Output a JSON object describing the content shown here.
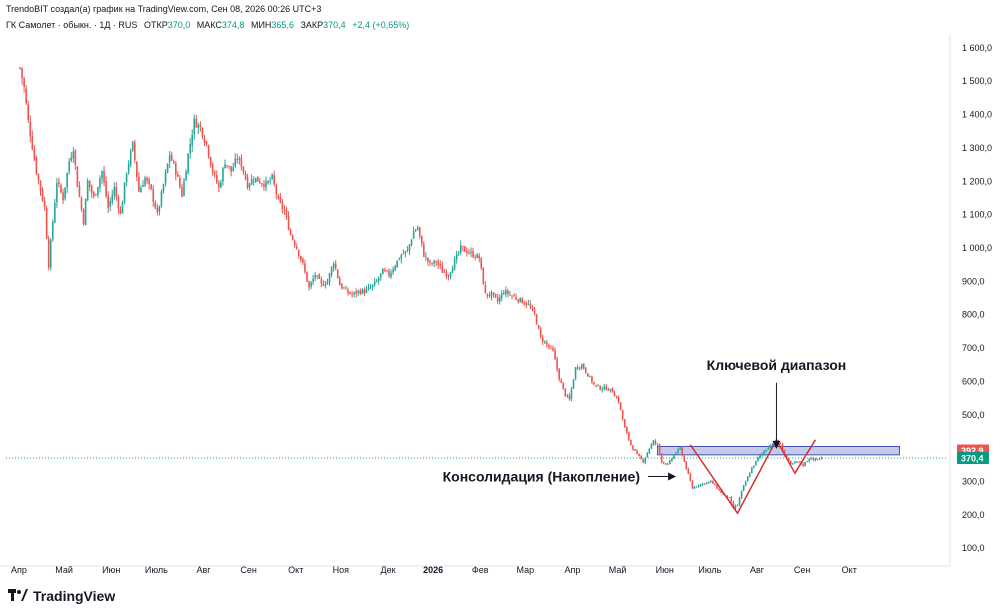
{
  "header": {
    "note": "TrendoBIT создал(а) график на TradingView.com, Сен 08, 2026 00:26 UTC+3",
    "symbol": "ГК Самолет · обыкн. · 1Д · RUS",
    "open_label": "ОТКР",
    "open_value": "370,0",
    "high_label": "МАКС",
    "high_value": "374,8",
    "low_label": "МИН",
    "low_value": "365,6",
    "close_label": "ЗАКР",
    "close_value": "370,4",
    "change": "+2,4 (+0,65%)"
  },
  "footer": {
    "brand": "TradingView",
    "logo_icon": "tradingview-logo-icon"
  },
  "colors": {
    "up": "#26a69a",
    "down": "#ef5350",
    "pattern": "#d32f2f",
    "zone_fill": "#c5cae9",
    "zone_border": "#3f51b5",
    "price_line": "#26a69a",
    "marker_red": "#ef5350",
    "marker_green": "#089981"
  },
  "chart_data": {
    "type": "candlestick",
    "title": "",
    "y_axis": {
      "position": "right",
      "ylim": [
        45,
        1700
      ],
      "ticks": [
        100,
        200,
        300,
        400,
        500,
        600,
        700,
        800,
        900,
        1000,
        1100,
        1200,
        1300,
        1400,
        1500,
        1600
      ],
      "tick_labels": [
        "100,0",
        "200,0",
        "300,0",
        "400,0",
        "500,0",
        "600,0",
        "700,0",
        "800,0",
        "900,0",
        "1 000,0",
        "1 100,0",
        "1 200,0",
        "1 300,0",
        "1 400,0",
        "1 500,0",
        "1 600,0"
      ]
    },
    "x_axis": {
      "labels": [
        "Апр",
        "Май",
        "Июн",
        "Июль",
        "Авг",
        "Сен",
        "Окт",
        "Ноя",
        "Дек",
        "2026",
        "Фев",
        "Мар",
        "Апр",
        "Май",
        "Июн",
        "Июль",
        "Авг",
        "Сен",
        "Окт"
      ],
      "label_index": [
        0,
        22,
        45,
        67,
        90,
        112,
        135,
        157,
        180,
        202,
        225,
        247,
        270,
        292,
        315,
        337,
        360,
        382,
        405
      ]
    },
    "price_path": [
      [
        0,
        1540
      ],
      [
        2,
        1480
      ],
      [
        4,
        1380
      ],
      [
        8,
        1230
      ],
      [
        12,
        1120
      ],
      [
        14,
        950
      ],
      [
        16,
        1080
      ],
      [
        18,
        1200
      ],
      [
        21,
        1150
      ],
      [
        24,
        1260
      ],
      [
        26,
        1300
      ],
      [
        28,
        1190
      ],
      [
        31,
        1080
      ],
      [
        33,
        1200
      ],
      [
        36,
        1150
      ],
      [
        40,
        1230
      ],
      [
        43,
        1120
      ],
      [
        46,
        1180
      ],
      [
        49,
        1100
      ],
      [
        52,
        1230
      ],
      [
        55,
        1310
      ],
      [
        58,
        1170
      ],
      [
        61,
        1210
      ],
      [
        64,
        1170
      ],
      [
        67,
        1100
      ],
      [
        70,
        1190
      ],
      [
        73,
        1280
      ],
      [
        76,
        1230
      ],
      [
        79,
        1160
      ],
      [
        82,
        1280
      ],
      [
        85,
        1380
      ],
      [
        88,
        1360
      ],
      [
        91,
        1310
      ],
      [
        94,
        1230
      ],
      [
        97,
        1180
      ],
      [
        100,
        1260
      ],
      [
        103,
        1230
      ],
      [
        106,
        1270
      ],
      [
        108,
        1250
      ],
      [
        111,
        1190
      ],
      [
        114,
        1210
      ],
      [
        117,
        1200
      ],
      [
        120,
        1190
      ],
      [
        123,
        1210
      ],
      [
        126,
        1140
      ],
      [
        129,
        1110
      ],
      [
        132,
        1040
      ],
      [
        135,
        1000
      ],
      [
        138,
        950
      ],
      [
        141,
        880
      ],
      [
        144,
        920
      ],
      [
        147,
        890
      ],
      [
        150,
        900
      ],
      [
        153,
        960
      ],
      [
        156,
        890
      ],
      [
        159,
        870
      ],
      [
        162,
        860
      ],
      [
        165,
        870
      ],
      [
        168,
        870
      ],
      [
        171,
        880
      ],
      [
        174,
        900
      ],
      [
        177,
        930
      ],
      [
        180,
        920
      ],
      [
        183,
        950
      ],
      [
        186,
        980
      ],
      [
        189,
        990
      ],
      [
        192,
        1050
      ],
      [
        194,
        1060
      ],
      [
        197,
        980
      ],
      [
        200,
        950
      ],
      [
        203,
        960
      ],
      [
        206,
        930
      ],
      [
        209,
        920
      ],
      [
        212,
        960
      ],
      [
        215,
        1000
      ],
      [
        218,
        990
      ],
      [
        221,
        980
      ],
      [
        224,
        970
      ],
      [
        227,
        860
      ],
      [
        230,
        860
      ],
      [
        233,
        840
      ],
      [
        236,
        870
      ],
      [
        239,
        860
      ],
      [
        242,
        850
      ],
      [
        245,
        840
      ],
      [
        248,
        830
      ],
      [
        251,
        800
      ],
      [
        254,
        730
      ],
      [
        257,
        710
      ],
      [
        260,
        690
      ],
      [
        263,
        610
      ],
      [
        266,
        560
      ],
      [
        268,
        545
      ],
      [
        271,
        640
      ],
      [
        274,
        650
      ],
      [
        277,
        620
      ],
      [
        280,
        590
      ],
      [
        283,
        580
      ],
      [
        286,
        580
      ],
      [
        289,
        570
      ],
      [
        292,
        540
      ],
      [
        295,
        460
      ],
      [
        298,
        410
      ],
      [
        301,
        380
      ],
      [
        304,
        360
      ],
      [
        307,
        400
      ],
      [
        309,
        420
      ],
      [
        311,
        410
      ],
      [
        313,
        360
      ],
      [
        316,
        350
      ],
      [
        319,
        380
      ],
      [
        322,
        400
      ],
      [
        325,
        340
      ],
      [
        328,
        280
      ],
      [
        331,
        290
      ],
      [
        334,
        295
      ],
      [
        337,
        300
      ],
      [
        340,
        280
      ],
      [
        343,
        260
      ],
      [
        346,
        250
      ],
      [
        348,
        220
      ],
      [
        350,
        230
      ],
      [
        352,
        270
      ],
      [
        354,
        300
      ],
      [
        357,
        340
      ],
      [
        360,
        370
      ],
      [
        363,
        390
      ],
      [
        366,
        410
      ],
      [
        369,
        420
      ],
      [
        371,
        410
      ],
      [
        373,
        380
      ],
      [
        376,
        350
      ],
      [
        379,
        360
      ],
      [
        382,
        350
      ],
      [
        385,
        370
      ],
      [
        388,
        365
      ],
      [
        391,
        370
      ]
    ],
    "pattern_line": [
      [
        327,
        410
      ],
      [
        350,
        205
      ],
      [
        369,
        425
      ],
      [
        378,
        325
      ],
      [
        388,
        425
      ]
    ],
    "resistance_zone": {
      "low": 380,
      "high": 405,
      "start_index": 311,
      "end_index": 429
    },
    "current_price": 370.4,
    "price_markers": [
      {
        "value": 392.9,
        "label": "392,9",
        "color": "red"
      },
      {
        "value": 370.4,
        "label": "370,4",
        "color": "green"
      }
    ],
    "annotations": [
      {
        "text": "Ключевой диапазон",
        "anchor_index": 369,
        "anchor_price": 392,
        "text_price": 650
      },
      {
        "text": "Консолидация (Накопление)",
        "anchor_index": 321,
        "anchor_price": 300,
        "text_price": 300
      }
    ]
  }
}
